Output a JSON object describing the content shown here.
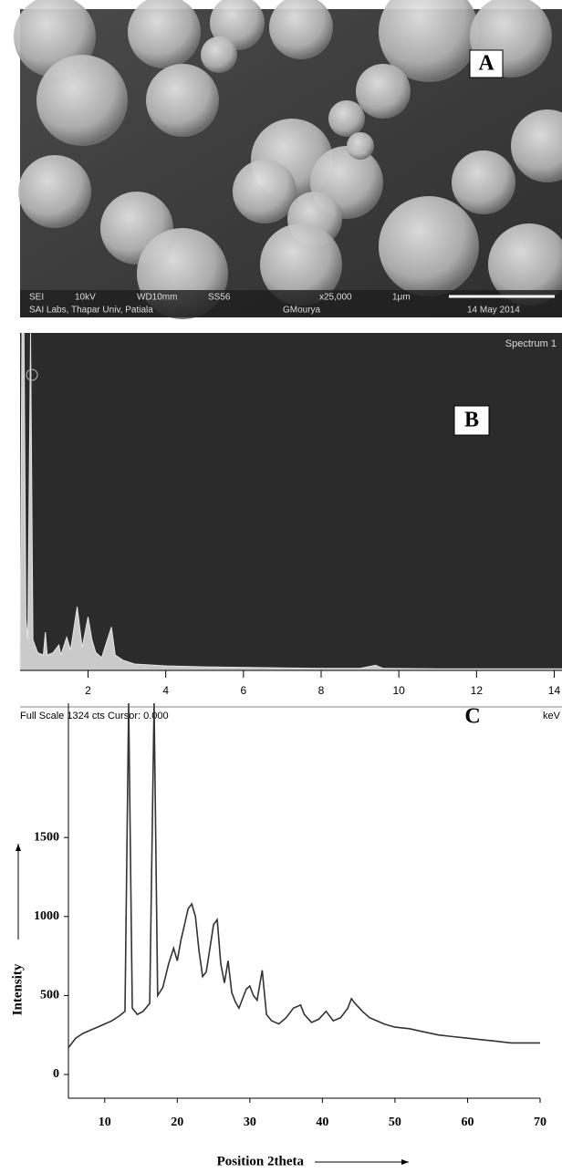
{
  "sem_image": {
    "label": "A",
    "info_line_1": [
      "SEI",
      "10kV",
      "WD10mm",
      "SS56",
      "x25,000",
      "1μm"
    ],
    "info_line_2": [
      "SAI Labs, Thapar Univ, Patiala",
      "GMourya",
      "14 May 2014"
    ]
  },
  "chart_data": [
    {
      "type": "area",
      "label": "B",
      "title": "Spectrum 1",
      "footer": "Full Scale 1324 cts Cursor: 0.000",
      "x_label": "keV",
      "color": "#e6e6e6",
      "xlim": [
        0.25,
        14.2
      ],
      "xticks": [
        2,
        4,
        6,
        8,
        10,
        12,
        14
      ],
      "ylim": [
        0,
        1324
      ],
      "x": [
        0.25,
        0.3,
        0.35,
        0.4,
        0.45,
        0.52,
        0.58,
        0.7,
        0.85,
        0.9,
        0.95,
        1.1,
        1.25,
        1.3,
        1.45,
        1.55,
        1.72,
        1.85,
        2.0,
        2.1,
        2.2,
        2.35,
        2.6,
        2.7,
        2.9,
        3.2,
        4,
        5,
        6,
        7,
        8,
        9,
        9.4,
        9.6,
        11,
        12,
        13,
        14,
        14.2
      ],
      "values": [
        50,
        1324,
        1324,
        200,
        120,
        1324,
        120,
        70,
        60,
        150,
        60,
        70,
        100,
        60,
        130,
        80,
        250,
        90,
        210,
        120,
        70,
        50,
        170,
        60,
        40,
        25,
        18,
        14,
        12,
        10,
        8,
        8,
        20,
        8,
        6,
        6,
        6,
        6,
        6
      ]
    },
    {
      "type": "line",
      "label": "C",
      "x_label": "Position 2theta",
      "y_label": "Intensity",
      "color": "#333333",
      "xlim": [
        5,
        70
      ],
      "xticks": [
        10,
        20,
        30,
        40,
        50,
        60,
        70
      ],
      "ylim": [
        -150,
        2350
      ],
      "yticks": [
        0,
        500,
        1000,
        1500
      ],
      "x": [
        5,
        6,
        7,
        8,
        9,
        10,
        11,
        12,
        12.8,
        13.3,
        13.8,
        14.5,
        15.3,
        16.2,
        16.8,
        17.3,
        18,
        18.8,
        19.5,
        20,
        20.5,
        21,
        21.5,
        22,
        22.5,
        23,
        23.5,
        24,
        24.5,
        25,
        25.5,
        26,
        26.5,
        27,
        27.5,
        28,
        28.5,
        29,
        29.5,
        30,
        30.5,
        31,
        31.7,
        32.3,
        33,
        34,
        35,
        36,
        37,
        37.5,
        38.5,
        39.5,
        40.5,
        41.5,
        42.5,
        43.5,
        44,
        44.5,
        45.5,
        46.5,
        47.5,
        48.5,
        50,
        52,
        54,
        56,
        58,
        60,
        62,
        64,
        66,
        68,
        70
      ],
      "values": [
        170,
        230,
        260,
        280,
        300,
        320,
        340,
        370,
        400,
        2350,
        420,
        380,
        400,
        450,
        2350,
        500,
        550,
        700,
        800,
        720,
        850,
        950,
        1050,
        1080,
        1000,
        780,
        620,
        650,
        800,
        950,
        980,
        700,
        580,
        720,
        520,
        460,
        420,
        480,
        540,
        560,
        500,
        470,
        660,
        380,
        340,
        320,
        360,
        420,
        440,
        380,
        330,
        350,
        400,
        340,
        360,
        420,
        480,
        450,
        400,
        360,
        340,
        320,
        300,
        290,
        270,
        250,
        240,
        230,
        220,
        210,
        200,
        200,
        200
      ]
    }
  ]
}
